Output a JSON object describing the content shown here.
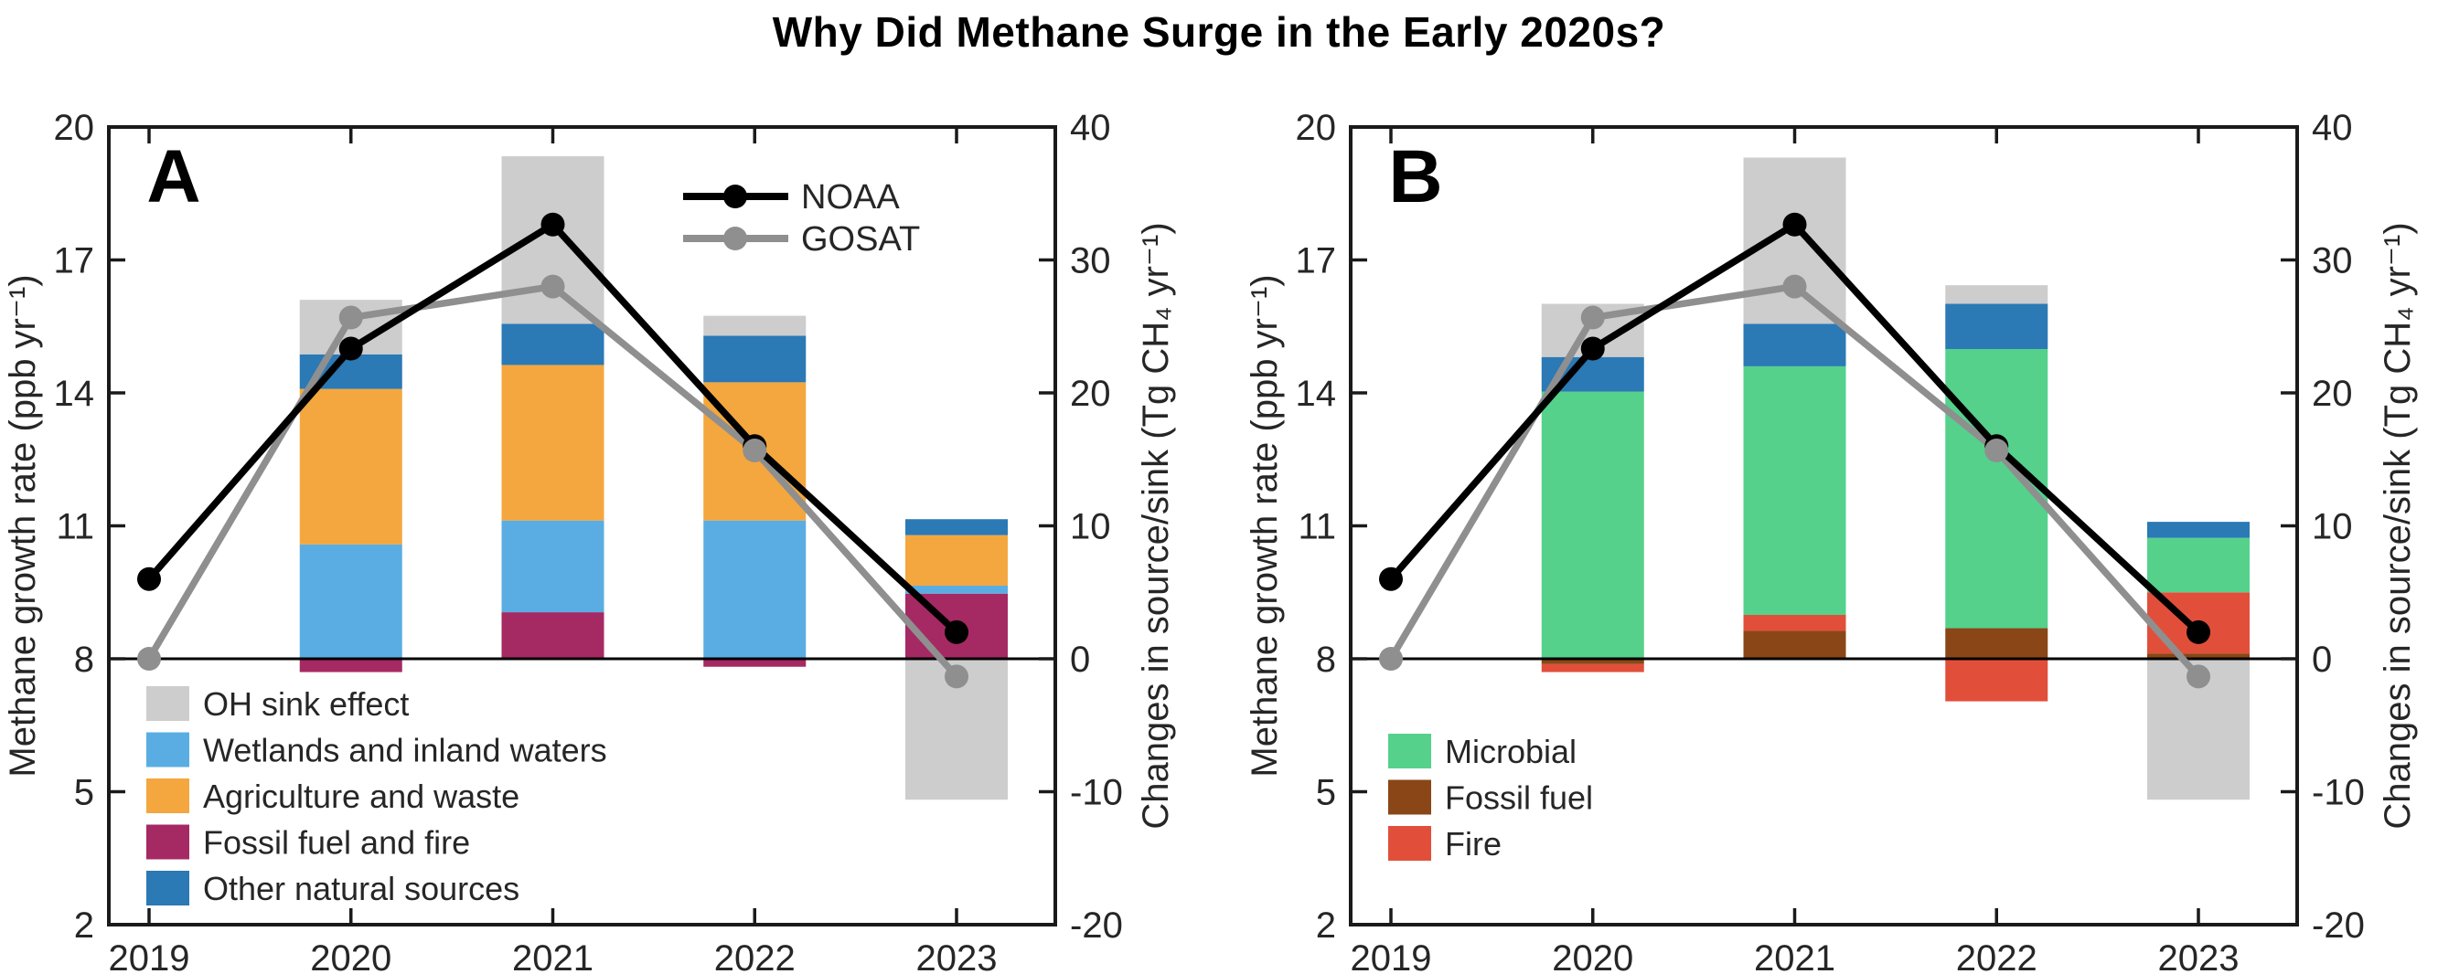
{
  "title": "Why Did Methane Surge in the Early 2020s?",
  "style": {
    "background": "#ffffff",
    "frame_color": "#1a1a1a",
    "text_color": "#262626",
    "zero_line_color": "#000000"
  },
  "chart_data": [
    {
      "id": "A",
      "type": "bar+line",
      "panel_letter": "A",
      "x": [
        2019,
        2020,
        2021,
        2022,
        2023
      ],
      "x_tick_labels": [
        "2019",
        "2020",
        "2021",
        "2022",
        "2023"
      ],
      "y_left": {
        "label": "Methane growth rate (ppb yr⁻¹)",
        "min": 2,
        "max": 20,
        "ticks": [
          2,
          5,
          8,
          11,
          14,
          17,
          20
        ]
      },
      "y_right": {
        "label": "Changes in source/sink (Tg CH₄ yr⁻¹)",
        "min": -20,
        "max": 40,
        "ticks": [
          -20,
          -10,
          0,
          10,
          20,
          30,
          40
        ]
      },
      "bars": {
        "years": [
          2020,
          2021,
          2022,
          2023
        ],
        "unit": "Tg CH4 yr-1 (right axis)",
        "stack_order_bottom_to_top": [
          "fossil_fire",
          "wetlands",
          "agriculture",
          "other_natural",
          "oh_sink"
        ],
        "series": [
          {
            "key": "fossil_fire",
            "label": "Fossil fuel and fire",
            "color": "#a52963",
            "values": [
              -1.0,
              3.5,
              -0.6,
              4.9
            ]
          },
          {
            "key": "wetlands",
            "label": "Wetlands and inland waters",
            "color": "#5aade3",
            "values": [
              8.6,
              6.9,
              10.4,
              0.6
            ]
          },
          {
            "key": "agriculture",
            "label": "Agriculture and waste",
            "color": "#f3a73e",
            "values": [
              11.7,
              11.7,
              10.4,
              3.8
            ]
          },
          {
            "key": "other_natural",
            "label": "Other natural sources",
            "color": "#2b79b5",
            "values": [
              2.6,
              3.1,
              3.5,
              1.2
            ]
          },
          {
            "key": "oh_sink",
            "label": "OH sink effect",
            "color": "#cdcdcd",
            "values": [
              4.1,
              12.6,
              1.5,
              -10.6
            ]
          }
        ],
        "legend_order": [
          "oh_sink",
          "wetlands",
          "agriculture",
          "fossil_fire",
          "other_natural"
        ]
      },
      "lines": {
        "unit": "ppb yr-1 (left axis)",
        "series": [
          {
            "key": "noaa",
            "label": "NOAA",
            "color": "#000000",
            "values": [
              9.8,
              15.0,
              17.8,
              12.8,
              8.6
            ]
          },
          {
            "key": "gosat",
            "label": "GOSAT",
            "color": "#8f8f8f",
            "values": [
              8.0,
              15.7,
              16.4,
              12.7,
              7.6
            ]
          }
        ],
        "legend": true
      }
    },
    {
      "id": "B",
      "type": "bar+line",
      "panel_letter": "B",
      "x": [
        2019,
        2020,
        2021,
        2022,
        2023
      ],
      "x_tick_labels": [
        "2019",
        "2020",
        "2021",
        "2022",
        "2023"
      ],
      "y_left": {
        "label": "Methane growth rate (ppb yr⁻¹)",
        "min": 2,
        "max": 20,
        "ticks": [
          2,
          5,
          8,
          11,
          14,
          17,
          20
        ]
      },
      "y_right": {
        "label": "Changes in source/sink (Tg CH₄ yr⁻¹)",
        "min": -20,
        "max": 40,
        "ticks": [
          -20,
          -10,
          0,
          10,
          20,
          30,
          40
        ]
      },
      "bars": {
        "years": [
          2020,
          2021,
          2022,
          2023
        ],
        "unit": "Tg CH4 yr-1 (right axis)",
        "stack_order_bottom_to_top": [
          "fossil",
          "fire",
          "microbial",
          "other_natural",
          "oh_sink"
        ],
        "series": [
          {
            "key": "fossil",
            "label": "Fossil fuel",
            "color": "#8a4616",
            "values": [
              -0.4,
              2.1,
              2.3,
              0.4
            ]
          },
          {
            "key": "fire",
            "label": "Fire",
            "color": "#e14f3b",
            "values": [
              -0.6,
              1.2,
              -3.2,
              4.6
            ]
          },
          {
            "key": "microbial",
            "label": "Microbial",
            "color": "#55d18c",
            "values": [
              20.1,
              18.7,
              21.0,
              4.1
            ]
          },
          {
            "key": "other_natural",
            "label": "Other natural sources",
            "color": "#2b79b5",
            "values": [
              2.6,
              3.2,
              3.4,
              1.2
            ]
          },
          {
            "key": "oh_sink",
            "label": "OH sink effect",
            "color": "#cdcdcd",
            "values": [
              4.0,
              12.5,
              1.4,
              -10.6
            ]
          }
        ],
        "legend_order": [
          "microbial",
          "fossil",
          "fire"
        ]
      },
      "lines": {
        "unit": "ppb yr-1 (left axis)",
        "series": [
          {
            "key": "noaa",
            "label": "NOAA",
            "color": "#000000",
            "values": [
              9.8,
              15.0,
              17.8,
              12.8,
              8.6
            ]
          },
          {
            "key": "gosat",
            "label": "GOSAT",
            "color": "#8f8f8f",
            "values": [
              8.0,
              15.7,
              16.4,
              12.7,
              7.6
            ]
          }
        ],
        "legend": false
      }
    }
  ]
}
